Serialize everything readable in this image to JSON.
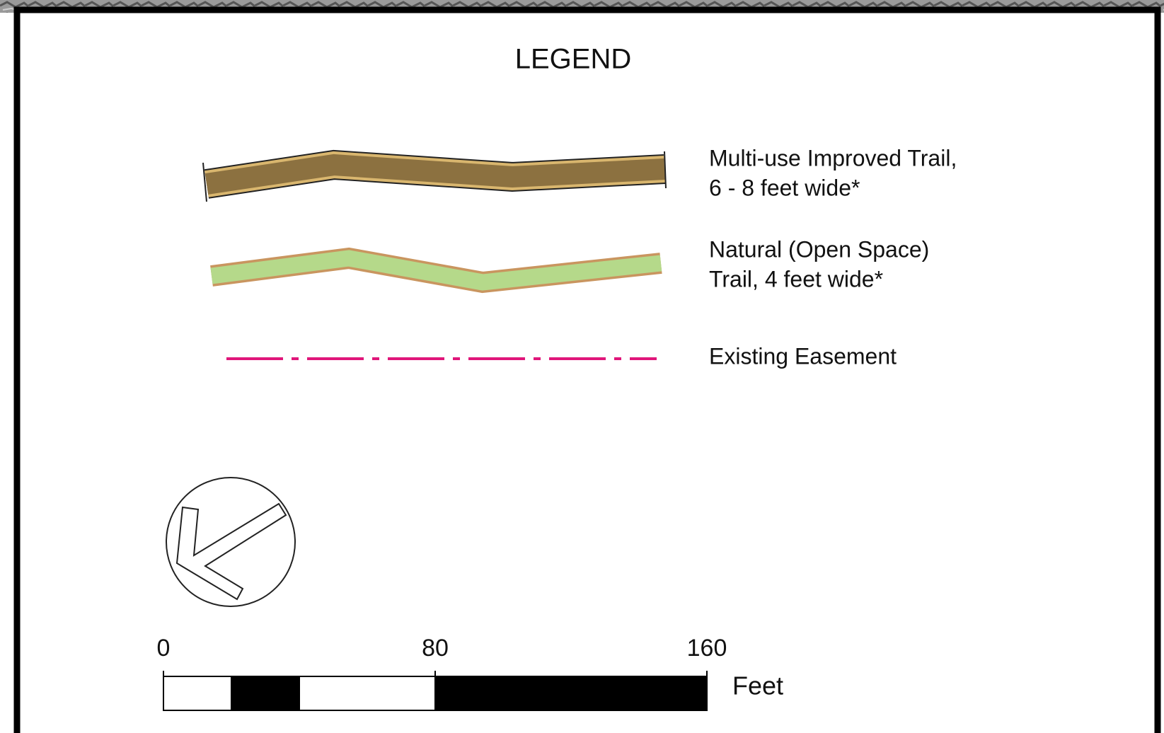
{
  "title": "LEGEND",
  "items": [
    {
      "lines": [
        "Multi-use Improved Trail,",
        "6 - 8 feet wide*"
      ]
    },
    {
      "lines": [
        "Natural (Open Space)",
        "Trail, 4 feet wide*"
      ]
    },
    {
      "lines": [
        "Existing Easement"
      ]
    }
  ],
  "scale": {
    "ticks": [
      0,
      80,
      160
    ],
    "unit": "Feet"
  }
}
